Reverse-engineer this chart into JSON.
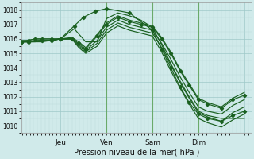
{
  "title": "Pression niveau de la mer( hPa )",
  "ylim": [
    1009.5,
    1018.5
  ],
  "yticks": [
    1010,
    1011,
    1012,
    1013,
    1014,
    1015,
    1016,
    1017,
    1018
  ],
  "day_positions": [
    0.0,
    1.0,
    2.0,
    3.0,
    4.0
  ],
  "day_labels": [
    "Jeu",
    "Ven",
    "Sam",
    "Dim",
    ""
  ],
  "bg_color": "#d0eaea",
  "grid_color_minor": "#b8d8d8",
  "grid_color_major": "#9ec8c8",
  "line_color": "#1a6020",
  "vline_color": "#6aaa6a",
  "vline_positions": [
    1.0,
    2.0,
    3.0
  ],
  "xlim": [
    -0.85,
    4.15
  ],
  "lines": [
    {
      "x": [
        -0.85,
        -0.7,
        -0.55,
        -0.4,
        -0.2,
        0.0,
        0.25,
        0.4,
        0.55,
        0.8,
        1.0,
        1.25,
        1.5,
        1.75,
        2.0,
        2.2,
        2.4,
        2.6,
        2.8,
        3.0,
        3.2,
        3.5,
        3.75,
        4.0
      ],
      "y": [
        1015.8,
        1015.9,
        1016.0,
        1016.0,
        1016.0,
        1016.0,
        1016.0,
        1015.7,
        1015.3,
        1016.2,
        1017.0,
        1017.5,
        1017.2,
        1017.0,
        1016.8,
        1016.0,
        1015.0,
        1013.8,
        1012.8,
        1011.8,
        1011.5,
        1011.2,
        1011.8,
        1012.1
      ],
      "has_markers": true
    },
    {
      "x": [
        -0.85,
        -0.7,
        -0.55,
        -0.4,
        -0.2,
        0.0,
        0.25,
        0.4,
        0.55,
        0.8,
        1.0,
        1.25,
        1.5,
        1.75,
        2.0,
        2.2,
        2.4,
        2.6,
        2.8,
        3.0,
        3.2,
        3.5,
        3.75,
        4.0
      ],
      "y": [
        1015.8,
        1015.8,
        1015.9,
        1015.9,
        1015.9,
        1016.0,
        1016.0,
        1015.6,
        1015.2,
        1015.9,
        1016.8,
        1017.3,
        1017.0,
        1016.8,
        1016.6,
        1015.7,
        1014.6,
        1013.4,
        1012.3,
        1011.3,
        1011.0,
        1010.8,
        1011.4,
        1011.8
      ],
      "has_markers": false
    },
    {
      "x": [
        -0.85,
        -0.7,
        -0.55,
        -0.4,
        -0.2,
        0.0,
        0.25,
        0.4,
        0.55,
        0.8,
        1.0,
        1.25,
        1.5,
        1.75,
        2.0,
        2.2,
        2.4,
        2.6,
        2.8,
        3.0,
        3.2,
        3.5,
        3.75,
        4.0
      ],
      "y": [
        1015.8,
        1015.8,
        1015.8,
        1015.9,
        1015.9,
        1016.0,
        1016.0,
        1015.5,
        1015.1,
        1015.7,
        1016.6,
        1017.1,
        1016.8,
        1016.6,
        1016.4,
        1015.4,
        1014.2,
        1013.0,
        1011.9,
        1010.9,
        1010.6,
        1010.3,
        1010.9,
        1011.3
      ],
      "has_markers": false
    },
    {
      "x": [
        -0.85,
        -0.7,
        -0.55,
        -0.4,
        -0.2,
        0.0,
        0.25,
        0.4,
        0.55,
        0.8,
        1.0,
        1.25,
        1.5,
        1.75,
        2.0,
        2.2,
        2.4,
        2.6,
        2.8,
        3.0,
        3.2,
        3.5,
        3.75,
        4.0
      ],
      "y": [
        1015.8,
        1015.8,
        1015.8,
        1015.8,
        1015.9,
        1016.0,
        1016.0,
        1015.4,
        1015.0,
        1015.5,
        1016.4,
        1016.9,
        1016.6,
        1016.4,
        1016.2,
        1015.1,
        1013.8,
        1012.6,
        1011.5,
        1010.5,
        1010.2,
        1009.9,
        1010.4,
        1010.8
      ],
      "has_markers": false
    },
    {
      "x": [
        -0.85,
        -0.7,
        -0.55,
        -0.4,
        -0.2,
        0.0,
        0.25,
        0.4,
        0.55,
        0.8,
        1.0,
        1.25,
        1.5,
        1.75,
        2.0,
        2.2,
        2.4,
        2.6,
        2.8,
        3.0,
        3.2,
        3.5,
        3.75,
        4.0
      ],
      "y": [
        1015.9,
        1015.9,
        1016.0,
        1016.0,
        1016.0,
        1016.0,
        1016.1,
        1015.8,
        1015.4,
        1016.3,
        1017.1,
        1017.6,
        1017.3,
        1017.1,
        1016.9,
        1016.1,
        1015.1,
        1013.9,
        1012.9,
        1011.9,
        1011.6,
        1011.3,
        1011.9,
        1012.3
      ],
      "has_markers": false
    },
    {
      "x": [
        -0.85,
        -0.7,
        -0.4,
        -0.2,
        0.0,
        0.3,
        0.55,
        0.8,
        1.0,
        1.25,
        1.5,
        1.75,
        2.0,
        2.2,
        2.4,
        2.6,
        2.8,
        3.0,
        3.2,
        3.5,
        3.75,
        4.0
      ],
      "y": [
        1015.8,
        1015.8,
        1015.9,
        1015.9,
        1016.0,
        1016.7,
        1015.8,
        1015.8,
        1017.4,
        1017.8,
        1017.6,
        1017.3,
        1016.8,
        1015.6,
        1014.3,
        1013.1,
        1012.0,
        1011.0,
        1010.7,
        1010.5,
        1010.5,
        1010.5
      ],
      "has_markers": false
    },
    {
      "x": [
        -0.85,
        -0.7,
        -0.4,
        -0.2,
        0.0,
        0.3,
        0.5,
        0.75,
        1.0,
        1.5,
        2.0,
        2.2,
        2.4,
        2.6,
        2.8,
        3.0,
        3.2,
        3.5,
        3.75,
        4.0
      ],
      "y": [
        1015.8,
        1015.8,
        1015.9,
        1015.9,
        1016.0,
        1016.9,
        1017.5,
        1017.9,
        1018.1,
        1017.8,
        1016.6,
        1015.3,
        1014.0,
        1012.7,
        1011.6,
        1010.8,
        1010.5,
        1010.3,
        1010.7,
        1011.0
      ],
      "has_markers": true
    }
  ]
}
